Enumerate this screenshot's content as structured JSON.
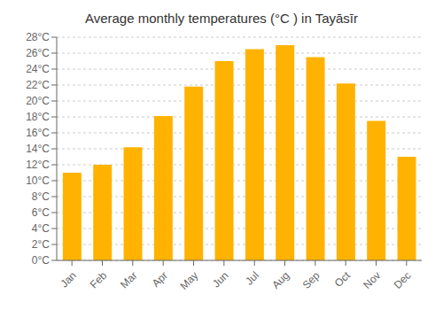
{
  "chart_data": {
    "type": "bar",
    "title": "Average monthly temperatures (°C ) in Tayāsīr",
    "categories": [
      "Jan",
      "Feb",
      "Mar",
      "Apr",
      "May",
      "Jun",
      "Jul",
      "Aug",
      "Sep",
      "Oct",
      "Nov",
      "Dec"
    ],
    "values": [
      11.0,
      12.0,
      14.2,
      18.1,
      21.8,
      25.0,
      26.5,
      27.0,
      25.5,
      22.2,
      17.5,
      13.0
    ],
    "color": "#FFB300",
    "ylim": [
      0,
      28
    ],
    "yticks": [
      {
        "value": 0,
        "label": "0°C"
      },
      {
        "value": 2,
        "label": "2°C"
      },
      {
        "value": 4,
        "label": "4°C"
      },
      {
        "value": 6,
        "label": "6°C"
      },
      {
        "value": 8,
        "label": "8°C"
      },
      {
        "value": 10,
        "label": "10°C"
      },
      {
        "value": 12,
        "label": "12°C"
      },
      {
        "value": 14,
        "label": "14°C"
      },
      {
        "value": 16,
        "label": "16°C"
      },
      {
        "value": 18,
        "label": "18°C"
      },
      {
        "value": 20,
        "label": "20°C"
      },
      {
        "value": 22,
        "label": "22°C"
      },
      {
        "value": 24,
        "label": "24°C"
      },
      {
        "value": 26,
        "label": "26°C"
      },
      {
        "value": 28,
        "label": "28°C"
      }
    ],
    "grid": true
  }
}
